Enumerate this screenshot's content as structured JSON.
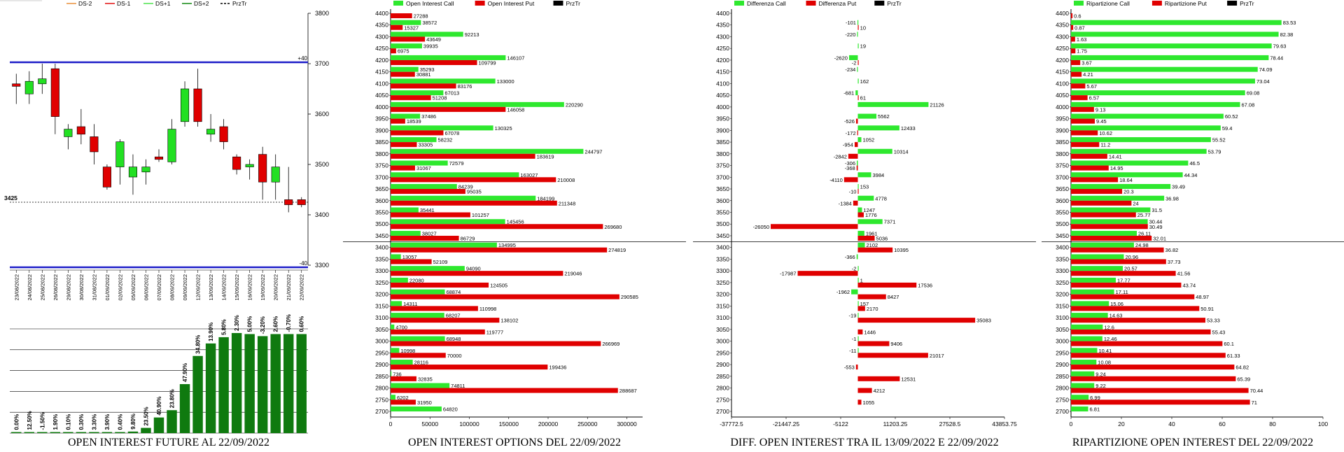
{
  "titles": {
    "futures": "OPEN INTEREST FUTURE AL 22/09/2022",
    "options": "OPEN INTEREST OPTIONS DEL 22/09/2022",
    "diff": "DIFF. OPEN INTEREST TRA IL 13/09/2022 E 22/09/2022",
    "ripart": "RIPARTIZIONE OPEN INTEREST DEL 22/09/2022"
  },
  "chart_data": [
    {
      "type": "candlestick",
      "id": "futures",
      "legend": [
        "DS-2",
        "DS-1",
        "DS+1",
        "DS+2",
        "PrzTr"
      ],
      "legend_colors": [
        "#e8892c",
        "#e00000",
        "#40e040",
        "#008000",
        "#000000"
      ],
      "ylim": [
        3300,
        3800
      ],
      "yticks": [
        3300,
        3400,
        3500,
        3600,
        3700,
        3800
      ],
      "ref_line": {
        "value": 3700,
        "label": "+40"
      },
      "bottom_label": "-40",
      "last_price": {
        "value": 3425,
        "label": "3425"
      },
      "dates": [
        "23/08/2022",
        "24/08/2022",
        "25/08/2022",
        "26/08/2022",
        "29/08/2022",
        "30/08/2022",
        "31/08/2022",
        "01/09/2022",
        "02/09/2022",
        "05/09/2022",
        "06/09/2022",
        "07/09/2022",
        "08/09/2022",
        "09/09/2022",
        "12/09/2022",
        "13/09/2022",
        "14/09/2022",
        "15/09/2022",
        "16/09/2022",
        "19/09/2022",
        "20/09/2022",
        "21/09/2022",
        "22/09/2022"
      ],
      "candles": [
        {
          "o": 3660,
          "h": 3680,
          "l": 3620,
          "c": 3655
        },
        {
          "o": 3640,
          "h": 3685,
          "l": 3620,
          "c": 3665
        },
        {
          "o": 3660,
          "h": 3700,
          "l": 3640,
          "c": 3670
        },
        {
          "o": 3690,
          "h": 3700,
          "l": 3560,
          "c": 3595
        },
        {
          "o": 3555,
          "h": 3580,
          "l": 3530,
          "c": 3570
        },
        {
          "o": 3575,
          "h": 3610,
          "l": 3540,
          "c": 3560
        },
        {
          "o": 3555,
          "h": 3580,
          "l": 3500,
          "c": 3525
        },
        {
          "o": 3495,
          "h": 3500,
          "l": 3450,
          "c": 3455
        },
        {
          "o": 3495,
          "h": 3550,
          "l": 3460,
          "c": 3545
        },
        {
          "o": 3475,
          "h": 3520,
          "l": 3440,
          "c": 3495
        },
        {
          "o": 3485,
          "h": 3510,
          "l": 3460,
          "c": 3495
        },
        {
          "o": 3515,
          "h": 3530,
          "l": 3505,
          "c": 3510
        },
        {
          "o": 3505,
          "h": 3590,
          "l": 3500,
          "c": 3570
        },
        {
          "o": 3585,
          "h": 3665,
          "l": 3575,
          "c": 3650
        },
        {
          "o": 3650,
          "h": 3690,
          "l": 3575,
          "c": 3585
        },
        {
          "o": 3560,
          "h": 3600,
          "l": 3545,
          "c": 3570
        },
        {
          "o": 3575,
          "h": 3590,
          "l": 3530,
          "c": 3545
        },
        {
          "o": 3515,
          "h": 3520,
          "l": 3480,
          "c": 3490
        },
        {
          "o": 3495,
          "h": 3510,
          "l": 3470,
          "c": 3500
        },
        {
          "o": 3520,
          "h": 3535,
          "l": 3430,
          "c": 3465
        },
        {
          "o": 3465,
          "h": 3520,
          "l": 3430,
          "c": 3495
        },
        {
          "o": 3430,
          "h": 3495,
          "l": 3405,
          "c": 3420
        },
        {
          "o": 3430,
          "h": 3435,
          "l": 3415,
          "c": 3420
        }
      ],
      "bottom_bars": {
        "values": [
          0.0,
          12.5,
          -1.5,
          1.9,
          0.1,
          0.3,
          3.3,
          3.9,
          0.4,
          9.8,
          23.5,
          40.9,
          23.8,
          47.9,
          34.8,
          13.9,
          5.8,
          2.3,
          5.0,
          -3.2,
          2.6,
          -0.7,
          0.6
        ],
        "labels": [
          "0.00%",
          "12.50%",
          "-1.50%",
          "1.90%",
          "0.10%",
          "0.30%",
          "3.30%",
          "3.90%",
          "0.40%",
          "9.80%",
          "23.50%",
          "40.90%",
          "23.80%",
          "47.90%",
          "34.80%",
          "13.90%",
          "5.80%",
          "2.30%",
          "5.00%",
          "-3.20%",
          "2.60%",
          "-0.70%",
          "0.60%"
        ],
        "heights_pct": [
          0.5,
          0.5,
          0.5,
          0.5,
          0.5,
          0.5,
          0.5,
          0.5,
          0.5,
          1.5,
          5,
          15,
          22,
          47,
          74,
          86,
          92,
          96,
          95,
          93,
          95,
          95,
          95
        ]
      }
    },
    {
      "type": "bar",
      "orientation": "horizontal",
      "id": "options",
      "legend": [
        "Open Interest Call",
        "Open Interest Put",
        "PrzTr"
      ],
      "legend_colors": [
        "#2ee82e",
        "#e00000",
        "#000000"
      ],
      "categories": [
        4400,
        4350,
        4300,
        4250,
        4200,
        4150,
        4100,
        4050,
        4000,
        3950,
        3900,
        3850,
        3800,
        3750,
        3700,
        3650,
        3600,
        3550,
        3500,
        3450,
        3400,
        3350,
        3300,
        3250,
        3200,
        3150,
        3100,
        3050,
        3000,
        2950,
        2900,
        2850,
        2800,
        2750,
        2700
      ],
      "xlim": [
        0,
        320000
      ],
      "xticks": [
        0,
        50000,
        100000,
        150000,
        200000,
        250000,
        300000
      ],
      "price_line": 3425,
      "series": [
        {
          "name": "Open Interest Call",
          "values": [
            null,
            38572,
            92213,
            39935,
            146107,
            35293,
            133000,
            67013,
            220290,
            37486,
            130325,
            58232,
            244797,
            72579,
            163027,
            84239,
            184199,
            35441,
            145456,
            38027,
            134995,
            13057,
            94090,
            22080,
            68874,
            14311,
            68207,
            4700,
            68948,
            10998,
            28116,
            736,
            74811,
            6202,
            64820
          ]
        },
        {
          "name": "Open Interest Put",
          "values": [
            27288,
            15327,
            43649,
            6975,
            109799,
            30881,
            83176,
            51208,
            146058,
            18539,
            67078,
            33305,
            183619,
            31067,
            210008,
            95035,
            211348,
            101257,
            269680,
            86729,
            274819,
            52109,
            219046,
            124505,
            290585,
            110998,
            138102,
            119777,
            266969,
            70000,
            199436,
            32835,
            288687,
            31950,
            null
          ]
        }
      ]
    },
    {
      "type": "bar",
      "orientation": "horizontal",
      "id": "diff",
      "legend": [
        "Differenza Call",
        "Differenza Put",
        "PrzTr"
      ],
      "legend_colors": [
        "#2ee82e",
        "#e00000",
        "#000000"
      ],
      "categories": [
        4400,
        4350,
        4300,
        4250,
        4200,
        4150,
        4100,
        4050,
        4000,
        3950,
        3900,
        3850,
        3800,
        3750,
        3700,
        3650,
        3600,
        3550,
        3500,
        3450,
        3400,
        3350,
        3300,
        3250,
        3200,
        3150,
        3100,
        3050,
        3000,
        2950,
        2900,
        2850,
        2800,
        2750,
        2700
      ],
      "xlim": [
        -37772.5,
        43853.75
      ],
      "xticks": [
        -37772.5,
        -21447.25,
        -5122,
        11203.25,
        27528.5,
        43853.75
      ],
      "xtick_labels": [
        "-37772.5",
        "-21447.25",
        "-5122",
        "11203.25",
        "27528.5",
        "43853.75"
      ],
      "price_line": 3425,
      "series": [
        {
          "name": "Differenza Call",
          "values": [
            null,
            -101,
            -220,
            19,
            -2620,
            -234,
            162,
            -681,
            21126,
            5562,
            12433,
            1052,
            10314,
            -306,
            3984,
            153,
            4778,
            1247,
            7371,
            1961,
            2102,
            -366,
            -2,
            1,
            -1962,
            157,
            -19,
            null,
            -1,
            -11,
            null,
            null,
            null,
            null,
            null
          ]
        },
        {
          "name": "Differenza Put",
          "values": [
            null,
            10,
            null,
            null,
            -2,
            null,
            null,
            61,
            null,
            -526,
            -172,
            -954,
            -2842,
            -368,
            -4110,
            -10,
            -1384,
            1776,
            -26050,
            5036,
            10395,
            null,
            -17987,
            17536,
            8427,
            2170,
            35083,
            1446,
            9406,
            21017,
            -553,
            12531,
            4212,
            1055,
            null
          ]
        }
      ]
    },
    {
      "type": "bar",
      "orientation": "horizontal",
      "id": "ripart",
      "legend": [
        "Ripartizione Call",
        "Ripartizione Put",
        "PrzTr"
      ],
      "legend_colors": [
        "#2ee82e",
        "#e00000",
        "#000000"
      ],
      "categories": [
        4400,
        4350,
        4300,
        4250,
        4200,
        4150,
        4100,
        4050,
        4000,
        3950,
        3900,
        3850,
        3800,
        3750,
        3700,
        3650,
        3600,
        3550,
        3500,
        3450,
        3400,
        3350,
        3300,
        3250,
        3200,
        3150,
        3100,
        3050,
        3000,
        2950,
        2900,
        2850,
        2800,
        2750,
        2700
      ],
      "xlim": [
        0,
        100
      ],
      "xticks": [
        0,
        20,
        40,
        60,
        80,
        100
      ],
      "price_line": 3425,
      "series": [
        {
          "name": "Ripartizione Call",
          "values": [
            null,
            83.53,
            82.38,
            79.63,
            78.44,
            74.09,
            73.04,
            69.08,
            67.08,
            60.52,
            59.4,
            55.52,
            53.79,
            46.5,
            44.34,
            39.49,
            36.98,
            31.5,
            30.44,
            26.11,
            24.98,
            20.96,
            20.57,
            17.77,
            17.11,
            15.06,
            14.63,
            12.6,
            12.46,
            10.41,
            10.08,
            9.24,
            9.22,
            6.99,
            6.81
          ]
        },
        {
          "name": "Ripartizione Put",
          "values": [
            0.6,
            0.87,
            1.63,
            1.75,
            3.67,
            4.21,
            5.67,
            6.57,
            9.13,
            9.45,
            10.62,
            11.2,
            14.41,
            14.95,
            18.64,
            20.3,
            24,
            25.77,
            30.49,
            32.01,
            36.82,
            37.73,
            41.56,
            43.74,
            48.97,
            50.91,
            53.33,
            55.43,
            60.1,
            61.33,
            64.82,
            65.39,
            70.44,
            71,
            null
          ]
        }
      ]
    }
  ]
}
